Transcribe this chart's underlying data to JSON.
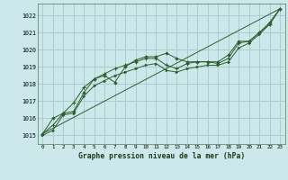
{
  "title": "Graphe pression niveau de la mer (hPa)",
  "bg_color": "#cce8ea",
  "grid_color": "#aacdd0",
  "line_color": "#2d5f2d",
  "marker_color": "#2d5f2d",
  "xlim": [
    -0.5,
    23.5
  ],
  "ylim": [
    1014.5,
    1022.7
  ],
  "yticks": [
    1015,
    1016,
    1017,
    1018,
    1019,
    1020,
    1021,
    1022
  ],
  "xticks": [
    0,
    1,
    2,
    3,
    4,
    5,
    6,
    7,
    8,
    9,
    10,
    11,
    12,
    13,
    14,
    15,
    16,
    17,
    18,
    19,
    20,
    21,
    22,
    23
  ],
  "series_diamond": {
    "x": [
      0,
      1,
      2,
      3,
      4,
      5,
      6,
      7,
      8,
      9,
      10,
      11,
      12,
      13,
      14,
      15,
      16,
      17,
      18,
      19,
      20,
      21,
      22,
      23
    ],
    "y": [
      1015.1,
      1016.0,
      1016.3,
      1016.4,
      1017.5,
      1018.3,
      1018.5,
      1018.1,
      1019.0,
      1019.4,
      1019.6,
      1019.6,
      1019.8,
      1019.5,
      1019.3,
      1019.3,
      1019.3,
      1019.3,
      1019.7,
      1020.5,
      1020.5,
      1021.0,
      1021.6,
      1022.4
    ]
  },
  "series_cross": {
    "x": [
      0,
      1,
      2,
      3,
      4,
      5,
      6,
      7,
      8,
      9,
      10,
      11,
      12,
      13,
      14,
      15,
      16,
      17,
      18,
      19,
      20,
      21,
      22,
      23
    ],
    "y": [
      1015.1,
      1015.6,
      1016.3,
      1016.9,
      1017.8,
      1018.3,
      1018.6,
      1018.9,
      1019.1,
      1019.3,
      1019.5,
      1019.5,
      1019.1,
      1018.9,
      1019.2,
      1019.3,
      1019.3,
      1019.2,
      1019.5,
      1020.4,
      1020.5,
      1021.0,
      1021.5,
      1022.4
    ]
  },
  "series_straight": {
    "x": [
      0,
      23
    ],
    "y": [
      1015.1,
      1022.4
    ]
  },
  "series_arrow": {
    "x": [
      0,
      1,
      2,
      3,
      4,
      5,
      6,
      7,
      8,
      9,
      10,
      11,
      12,
      13,
      14,
      15,
      16,
      17,
      18,
      19,
      20,
      21,
      22,
      23
    ],
    "y": [
      1015.0,
      1015.3,
      1016.2,
      1016.3,
      1017.3,
      1017.9,
      1018.2,
      1018.5,
      1018.7,
      1018.9,
      1019.1,
      1019.2,
      1018.8,
      1018.7,
      1018.9,
      1019.0,
      1019.1,
      1019.1,
      1019.3,
      1020.1,
      1020.4,
      1020.9,
      1021.5,
      1022.4
    ]
  }
}
